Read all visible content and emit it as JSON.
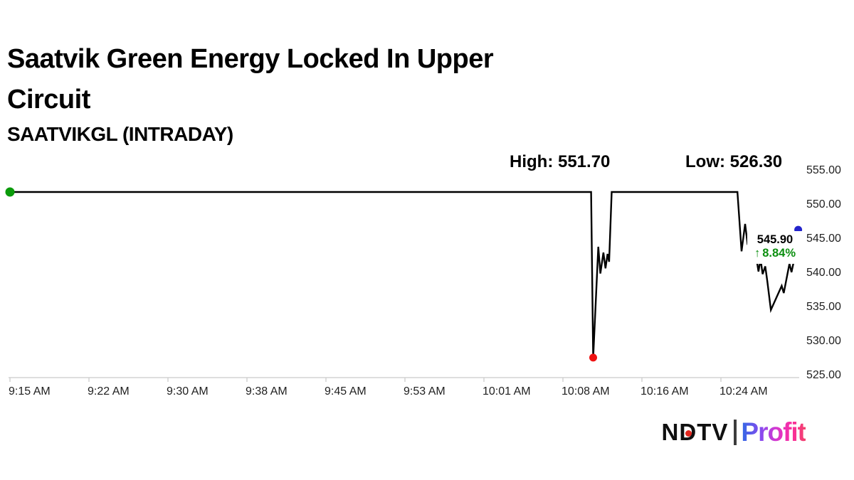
{
  "header": {
    "title": "Saatvik Green Energy Locked In Upper Circuit",
    "title_lines": [
      "Saatvik Green Energy Locked In Upper",
      "Circuit"
    ],
    "subtitle": "SAATVIKGL (INTRADAY)"
  },
  "annotations": {
    "high_label": "High: 551.70",
    "low_label": "Low: 526.30"
  },
  "last_trade": {
    "price": "545.90",
    "change_arrow": "↑",
    "change_percent": "8.84%"
  },
  "logo": {
    "brand": "NDTV",
    "product": "Profit"
  },
  "colors": {
    "line": "#000000",
    "axis": "#cbcbcb",
    "tick_text": "#1f1f1f",
    "change_green": "#0c8f10",
    "open_dot_green": "#0b9b0b",
    "low_dot_red": "#ef1212",
    "last_dot_blue": "#2424cb",
    "ndtv_dot_red": "#e3261d"
  },
  "chart_data": {
    "type": "line",
    "title": "SAATVIKGL (INTRADAY)",
    "xlabel": "",
    "ylabel": "",
    "x_unit": "minutes_after_9:15_AM",
    "x_tick_labels": [
      "9:15 AM",
      "9:22 AM",
      "9:30 AM",
      "9:38 AM",
      "9:45 AM",
      "9:53 AM",
      "10:01 AM",
      "10:08 AM",
      "10:16 AM",
      "10:24 AM"
    ],
    "x_tick_minutes": [
      0,
      7,
      15,
      23,
      30,
      38,
      46,
      53,
      61,
      69
    ],
    "y_tick_labels": [
      "555.00",
      "550.00",
      "545.00",
      "540.00",
      "535.00",
      "530.00",
      "525.00"
    ],
    "ylim": [
      525,
      555
    ],
    "grid": false,
    "legend": false,
    "high": 551.7,
    "low": 526.3,
    "last": 545.9,
    "change_percent": 8.84,
    "series": [
      {
        "name": "SAATVIKGL",
        "points": [
          [
            0,
            551.7
          ],
          [
            56.4,
            551.7
          ],
          [
            56.6,
            526.3
          ],
          [
            57.1,
            543.3
          ],
          [
            57.3,
            539.2
          ],
          [
            57.6,
            542.4
          ],
          [
            57.8,
            540.0
          ],
          [
            58.0,
            542.2
          ],
          [
            58.15,
            541.0
          ],
          [
            58.4,
            551.7
          ],
          [
            70.6,
            551.7
          ],
          [
            71.0,
            542.6
          ],
          [
            71.35,
            546.8
          ],
          [
            71.6,
            543.6
          ],
          [
            71.9,
            545.6
          ],
          [
            72.1,
            543.6
          ],
          [
            72.4,
            542.0
          ],
          [
            72.65,
            539.5
          ],
          [
            72.85,
            541.4
          ],
          [
            73.05,
            539.1
          ],
          [
            73.3,
            540.3
          ],
          [
            73.5,
            538.0
          ],
          [
            73.85,
            533.6
          ],
          [
            74.9,
            537.3
          ],
          [
            75.1,
            536.2
          ],
          [
            75.65,
            540.7
          ],
          [
            75.85,
            539.4
          ],
          [
            76.2,
            542.0
          ],
          [
            76.5,
            545.9
          ]
        ]
      }
    ],
    "markers": [
      {
        "name": "session-open-dot",
        "m": 0,
        "v": 551.7,
        "r": 6.5,
        "color_key": "open_dot_green"
      },
      {
        "name": "session-low-dot",
        "m": 56.6,
        "v": 526.3,
        "r": 5.5,
        "color_key": "low_dot_red"
      },
      {
        "name": "last-price-dot",
        "m": 76.5,
        "v": 545.9,
        "r": 5.5,
        "color_key": "last_dot_blue"
      }
    ]
  }
}
